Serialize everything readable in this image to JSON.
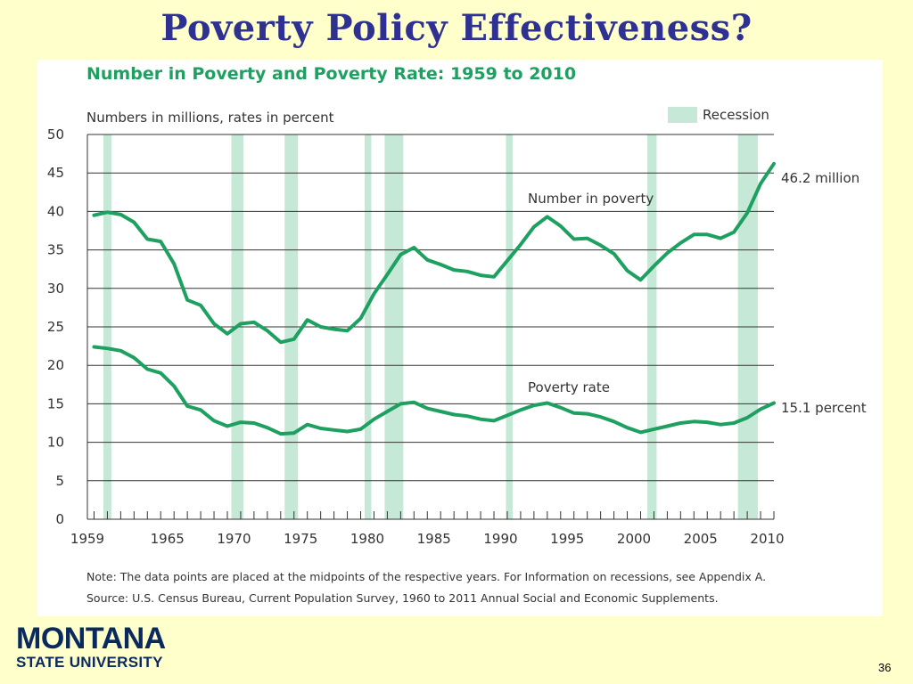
{
  "slide": {
    "title": "Poverty Policy Effectiveness?",
    "logo_main": "MONTANA",
    "logo_sub": "STATE UNIVERSITY",
    "page_number": "36"
  },
  "chart_data": {
    "type": "line",
    "title": "Number in Poverty and Poverty Rate: 1959 to 2010",
    "subtitle": "Numbers in millions, rates in percent",
    "legend": {
      "label": "Recession",
      "color": "#c6e8d6",
      "position": "top-right"
    },
    "line_color": "#1ea061",
    "ylim": [
      0,
      50
    ],
    "y_ticks": [
      0,
      5,
      10,
      15,
      20,
      25,
      30,
      35,
      40,
      45,
      50
    ],
    "xlim": [
      1959,
      2010.5
    ],
    "x_tick_labels": [
      "1959",
      "1965",
      "1970",
      "1975",
      "1980",
      "1985",
      "1990",
      "1995",
      "2000",
      "2005",
      "2010"
    ],
    "grid": true,
    "recessions": [
      [
        1960.2,
        1960.8
      ],
      [
        1969.8,
        1970.7
      ],
      [
        1973.8,
        1974.8
      ],
      [
        1979.8,
        1980.3
      ],
      [
        1981.3,
        1982.7
      ],
      [
        1990.4,
        1990.9
      ],
      [
        2001.0,
        2001.7
      ],
      [
        2007.8,
        2009.3
      ]
    ],
    "series": [
      {
        "name": "Number in poverty",
        "end_label": "46.2 million",
        "x": [
          1959,
          1960,
          1961,
          1962,
          1963,
          1964,
          1965,
          1966,
          1967,
          1968,
          1969,
          1970,
          1971,
          1972,
          1973,
          1974,
          1975,
          1976,
          1977,
          1978,
          1979,
          1980,
          1981,
          1982,
          1983,
          1984,
          1985,
          1986,
          1987,
          1988,
          1989,
          1990,
          1991,
          1992,
          1993,
          1994,
          1995,
          1996,
          1997,
          1998,
          1999,
          2000,
          2001,
          2002,
          2003,
          2004,
          2005,
          2006,
          2007,
          2008,
          2009,
          2010
        ],
        "values": [
          39.5,
          39.9,
          39.6,
          38.6,
          36.4,
          36.1,
          33.2,
          28.5,
          27.8,
          25.4,
          24.1,
          25.4,
          25.6,
          24.5,
          23.0,
          23.4,
          25.9,
          25.0,
          24.7,
          24.5,
          26.1,
          29.3,
          31.8,
          34.4,
          35.3,
          33.7,
          33.1,
          32.4,
          32.2,
          31.7,
          31.5,
          33.6,
          35.7,
          38.0,
          39.3,
          38.1,
          36.4,
          36.5,
          35.6,
          34.5,
          32.3,
          31.1,
          32.9,
          34.6,
          35.9,
          37.0,
          37.0,
          36.5,
          37.3,
          39.8,
          43.6,
          46.2
        ]
      },
      {
        "name": "Poverty rate",
        "end_label": "15.1 percent",
        "x": [
          1959,
          1960,
          1961,
          1962,
          1963,
          1964,
          1965,
          1966,
          1967,
          1968,
          1969,
          1970,
          1971,
          1972,
          1973,
          1974,
          1975,
          1976,
          1977,
          1978,
          1979,
          1980,
          1981,
          1982,
          1983,
          1984,
          1985,
          1986,
          1987,
          1988,
          1989,
          1990,
          1991,
          1992,
          1993,
          1994,
          1995,
          1996,
          1997,
          1998,
          1999,
          2000,
          2001,
          2002,
          2003,
          2004,
          2005,
          2006,
          2007,
          2008,
          2009,
          2010
        ],
        "values": [
          22.4,
          22.2,
          21.9,
          21.0,
          19.5,
          19.0,
          17.3,
          14.7,
          14.2,
          12.8,
          12.1,
          12.6,
          12.5,
          11.9,
          11.1,
          11.2,
          12.3,
          11.8,
          11.6,
          11.4,
          11.7,
          13.0,
          14.0,
          15.0,
          15.2,
          14.4,
          14.0,
          13.6,
          13.4,
          13.0,
          12.8,
          13.5,
          14.2,
          14.8,
          15.1,
          14.5,
          13.8,
          13.7,
          13.3,
          12.7,
          11.9,
          11.3,
          11.7,
          12.1,
          12.5,
          12.7,
          12.6,
          12.3,
          12.5,
          13.2,
          14.3,
          15.1
        ]
      }
    ],
    "note": "Note:  The data points are placed at the midpoints of the respective years. For Information on recessions, see Appendix A.",
    "source": "Source:  U.S. Census Bureau, Current Population Survey, 1960 to 2011 Annual Social and Economic Supplements."
  }
}
